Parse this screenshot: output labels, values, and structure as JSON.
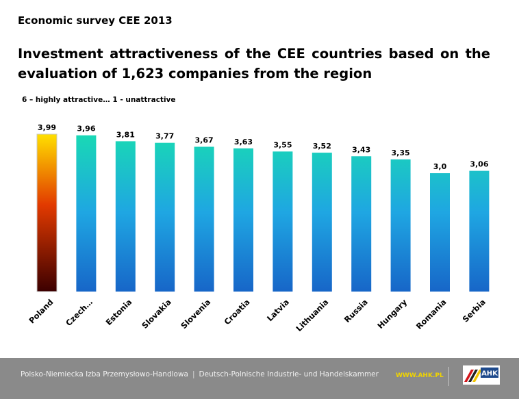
{
  "header": {
    "survey": "Economic survey CEE 2013",
    "title": "Investment attractiveness of the CEE countries based on the evaluation of 1,623 companies from the region",
    "scale_note": "6 – highly attractive… 1 - unattractive"
  },
  "chart_data": {
    "type": "bar",
    "categories": [
      "Poland",
      "Czech…",
      "Estonia",
      "Slovakia",
      "Slovenia",
      "Croatia",
      "Latvia",
      "Lithuania",
      "Russia",
      "Hungary",
      "Romania",
      "Serbia"
    ],
    "values": [
      3.99,
      3.96,
      3.81,
      3.77,
      3.67,
      3.63,
      3.55,
      3.52,
      3.43,
      3.35,
      3.0,
      3.06
    ],
    "data_labels": [
      "3,99",
      "3,96",
      "3,81",
      "3,77",
      "3,67",
      "3,63",
      "3,55",
      "3,52",
      "3,43",
      "3,35",
      "3,0",
      "3,06"
    ],
    "highlight": "Poland",
    "colors": {
      "highlight_top": "#ffe000",
      "highlight_mid": "#e23a00",
      "highlight_bottom": "#3c0000",
      "bar_top": "#19d9b4",
      "bar_mid": "#1fa6e2",
      "bar_bottom": "#1766c8"
    },
    "xlabel": "",
    "ylabel": "",
    "legend": "none",
    "grid": false
  },
  "footer": {
    "org_pl": "Polsko-Niemiecka Izba Przemysłowo-Handlowa",
    "separator": "|",
    "org_de": "Deutsch-Polnische Industrie- und Handelskammer",
    "url": "WWW.AHK.PL",
    "logo_text": "AHK",
    "colors": {
      "bar": "#8a8a8a",
      "url": "#f0d400",
      "logo_bg": "#1e4a8c"
    }
  }
}
